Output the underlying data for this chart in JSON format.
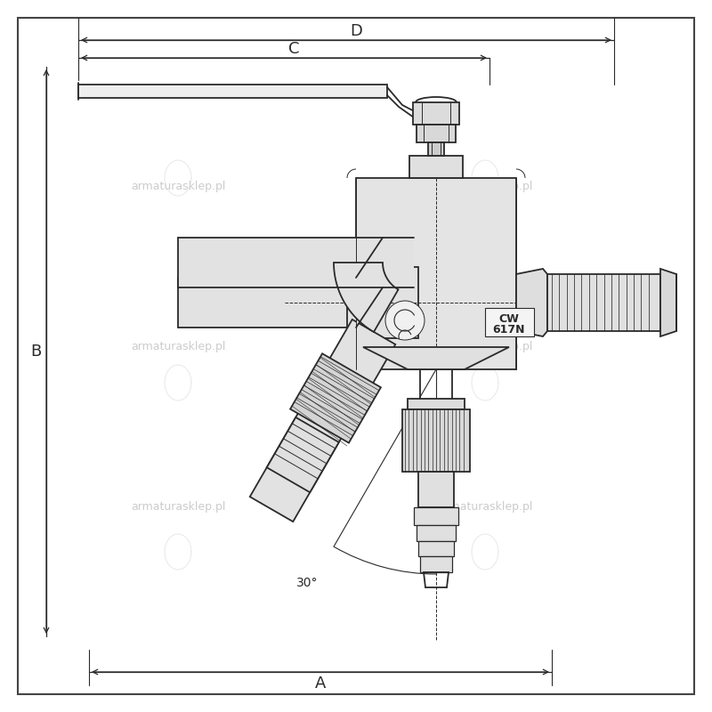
{
  "bg_color": "#ffffff",
  "line_color": "#2a2a2a",
  "dim_color": "#2a2a2a",
  "gray1": "#e8e8e8",
  "gray2": "#d4d4d4",
  "gray3": "#c0c0c0",
  "brand_text": "armaturasklep.pl",
  "dim_A": "A",
  "dim_B": "B",
  "dim_C": "C",
  "dim_D": "D",
  "angle_label": "30°",
  "cw_line1": "CW",
  "cw_line2": "617N"
}
